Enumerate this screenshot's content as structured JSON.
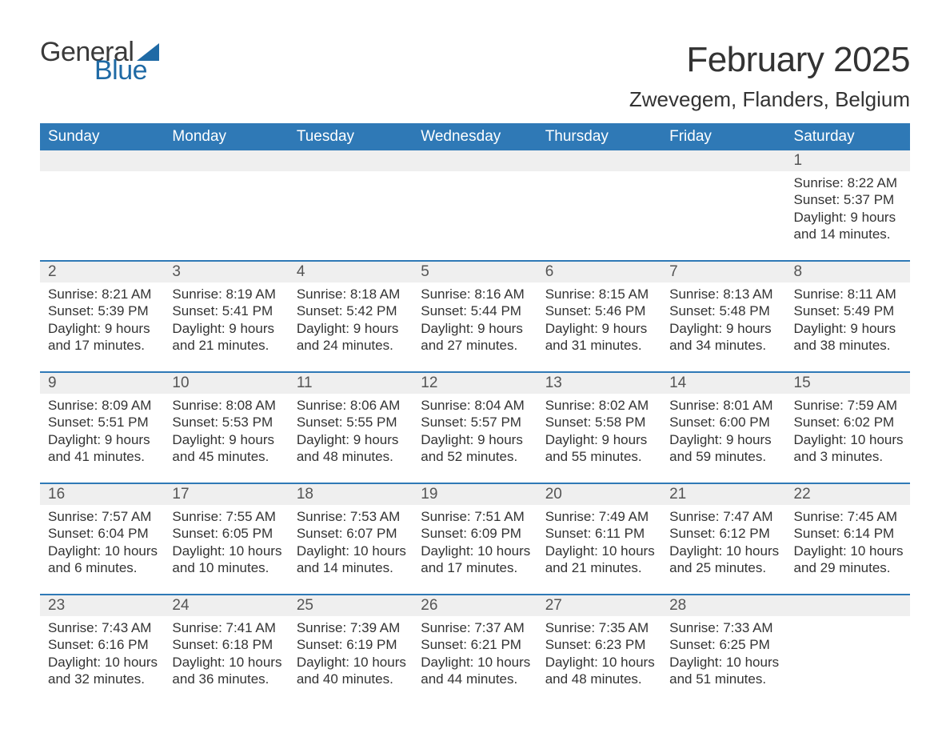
{
  "logo": {
    "text1": "General",
    "text2": "Blue"
  },
  "title": "February 2025",
  "subtitle": "Zwevegem, Flanders, Belgium",
  "colors": {
    "header_bg": "#2f79b6",
    "header_text": "#ffffff",
    "daynum_bg": "#efefef",
    "divider": "#2f79b6",
    "logo_blue": "#1f6aa5",
    "text": "#333333",
    "background": "#ffffff"
  },
  "typography": {
    "title_fontsize": 44,
    "subtitle_fontsize": 26,
    "dayheader_fontsize": 19,
    "daynum_fontsize": 19,
    "details_fontsize": 17
  },
  "day_headers": [
    "Sunday",
    "Monday",
    "Tuesday",
    "Wednesday",
    "Thursday",
    "Friday",
    "Saturday"
  ],
  "weeks": [
    [
      {
        "day": "",
        "sunrise": "",
        "sunset": "",
        "daylight": ""
      },
      {
        "day": "",
        "sunrise": "",
        "sunset": "",
        "daylight": ""
      },
      {
        "day": "",
        "sunrise": "",
        "sunset": "",
        "daylight": ""
      },
      {
        "day": "",
        "sunrise": "",
        "sunset": "",
        "daylight": ""
      },
      {
        "day": "",
        "sunrise": "",
        "sunset": "",
        "daylight": ""
      },
      {
        "day": "",
        "sunrise": "",
        "sunset": "",
        "daylight": ""
      },
      {
        "day": "1",
        "sunrise": "Sunrise: 8:22 AM",
        "sunset": "Sunset: 5:37 PM",
        "daylight": "Daylight: 9 hours and 14 minutes."
      }
    ],
    [
      {
        "day": "2",
        "sunrise": "Sunrise: 8:21 AM",
        "sunset": "Sunset: 5:39 PM",
        "daylight": "Daylight: 9 hours and 17 minutes."
      },
      {
        "day": "3",
        "sunrise": "Sunrise: 8:19 AM",
        "sunset": "Sunset: 5:41 PM",
        "daylight": "Daylight: 9 hours and 21 minutes."
      },
      {
        "day": "4",
        "sunrise": "Sunrise: 8:18 AM",
        "sunset": "Sunset: 5:42 PM",
        "daylight": "Daylight: 9 hours and 24 minutes."
      },
      {
        "day": "5",
        "sunrise": "Sunrise: 8:16 AM",
        "sunset": "Sunset: 5:44 PM",
        "daylight": "Daylight: 9 hours and 27 minutes."
      },
      {
        "day": "6",
        "sunrise": "Sunrise: 8:15 AM",
        "sunset": "Sunset: 5:46 PM",
        "daylight": "Daylight: 9 hours and 31 minutes."
      },
      {
        "day": "7",
        "sunrise": "Sunrise: 8:13 AM",
        "sunset": "Sunset: 5:48 PM",
        "daylight": "Daylight: 9 hours and 34 minutes."
      },
      {
        "day": "8",
        "sunrise": "Sunrise: 8:11 AM",
        "sunset": "Sunset: 5:49 PM",
        "daylight": "Daylight: 9 hours and 38 minutes."
      }
    ],
    [
      {
        "day": "9",
        "sunrise": "Sunrise: 8:09 AM",
        "sunset": "Sunset: 5:51 PM",
        "daylight": "Daylight: 9 hours and 41 minutes."
      },
      {
        "day": "10",
        "sunrise": "Sunrise: 8:08 AM",
        "sunset": "Sunset: 5:53 PM",
        "daylight": "Daylight: 9 hours and 45 minutes."
      },
      {
        "day": "11",
        "sunrise": "Sunrise: 8:06 AM",
        "sunset": "Sunset: 5:55 PM",
        "daylight": "Daylight: 9 hours and 48 minutes."
      },
      {
        "day": "12",
        "sunrise": "Sunrise: 8:04 AM",
        "sunset": "Sunset: 5:57 PM",
        "daylight": "Daylight: 9 hours and 52 minutes."
      },
      {
        "day": "13",
        "sunrise": "Sunrise: 8:02 AM",
        "sunset": "Sunset: 5:58 PM",
        "daylight": "Daylight: 9 hours and 55 minutes."
      },
      {
        "day": "14",
        "sunrise": "Sunrise: 8:01 AM",
        "sunset": "Sunset: 6:00 PM",
        "daylight": "Daylight: 9 hours and 59 minutes."
      },
      {
        "day": "15",
        "sunrise": "Sunrise: 7:59 AM",
        "sunset": "Sunset: 6:02 PM",
        "daylight": "Daylight: 10 hours and 3 minutes."
      }
    ],
    [
      {
        "day": "16",
        "sunrise": "Sunrise: 7:57 AM",
        "sunset": "Sunset: 6:04 PM",
        "daylight": "Daylight: 10 hours and 6 minutes."
      },
      {
        "day": "17",
        "sunrise": "Sunrise: 7:55 AM",
        "sunset": "Sunset: 6:05 PM",
        "daylight": "Daylight: 10 hours and 10 minutes."
      },
      {
        "day": "18",
        "sunrise": "Sunrise: 7:53 AM",
        "sunset": "Sunset: 6:07 PM",
        "daylight": "Daylight: 10 hours and 14 minutes."
      },
      {
        "day": "19",
        "sunrise": "Sunrise: 7:51 AM",
        "sunset": "Sunset: 6:09 PM",
        "daylight": "Daylight: 10 hours and 17 minutes."
      },
      {
        "day": "20",
        "sunrise": "Sunrise: 7:49 AM",
        "sunset": "Sunset: 6:11 PM",
        "daylight": "Daylight: 10 hours and 21 minutes."
      },
      {
        "day": "21",
        "sunrise": "Sunrise: 7:47 AM",
        "sunset": "Sunset: 6:12 PM",
        "daylight": "Daylight: 10 hours and 25 minutes."
      },
      {
        "day": "22",
        "sunrise": "Sunrise: 7:45 AM",
        "sunset": "Sunset: 6:14 PM",
        "daylight": "Daylight: 10 hours and 29 minutes."
      }
    ],
    [
      {
        "day": "23",
        "sunrise": "Sunrise: 7:43 AM",
        "sunset": "Sunset: 6:16 PM",
        "daylight": "Daylight: 10 hours and 32 minutes."
      },
      {
        "day": "24",
        "sunrise": "Sunrise: 7:41 AM",
        "sunset": "Sunset: 6:18 PM",
        "daylight": "Daylight: 10 hours and 36 minutes."
      },
      {
        "day": "25",
        "sunrise": "Sunrise: 7:39 AM",
        "sunset": "Sunset: 6:19 PM",
        "daylight": "Daylight: 10 hours and 40 minutes."
      },
      {
        "day": "26",
        "sunrise": "Sunrise: 7:37 AM",
        "sunset": "Sunset: 6:21 PM",
        "daylight": "Daylight: 10 hours and 44 minutes."
      },
      {
        "day": "27",
        "sunrise": "Sunrise: 7:35 AM",
        "sunset": "Sunset: 6:23 PM",
        "daylight": "Daylight: 10 hours and 48 minutes."
      },
      {
        "day": "28",
        "sunrise": "Sunrise: 7:33 AM",
        "sunset": "Sunset: 6:25 PM",
        "daylight": "Daylight: 10 hours and 51 minutes."
      },
      {
        "day": "",
        "sunrise": "",
        "sunset": "",
        "daylight": ""
      }
    ]
  ]
}
